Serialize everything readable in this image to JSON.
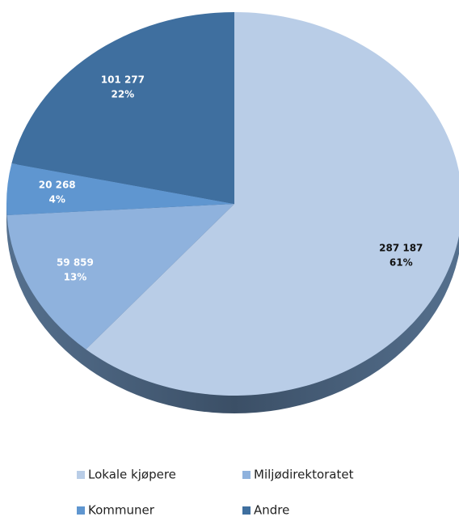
{
  "chart_data": {
    "type": "pie",
    "categories": [
      "Lokale kjøpere",
      "Miljødirektoratet",
      "Kommuner",
      "Andre"
    ],
    "values": [
      287187,
      59859,
      20268,
      101277
    ],
    "value_labels": [
      "287 187",
      "59 859",
      "20 268",
      "101 277"
    ],
    "percentages": [
      61,
      13,
      4,
      22
    ],
    "percentage_labels": [
      "61%",
      "13%",
      "4%",
      "22%"
    ],
    "colors": [
      "#b9cde7",
      "#8fb2dd",
      "#5f96d0",
      "#3f6f9f"
    ],
    "legend": "bottom"
  }
}
